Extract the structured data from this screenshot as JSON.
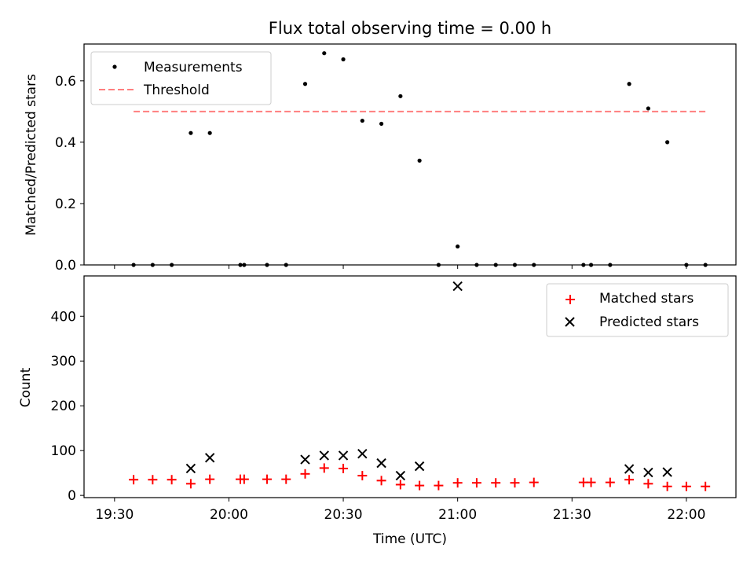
{
  "chart_data": {
    "title": "Flux total observing time = 0.00 h",
    "xlabel": "Time (UTC)",
    "x_ticks": [
      "19:30",
      "20:00",
      "20:30",
      "21:00",
      "21:30",
      "22:00"
    ],
    "x_tick_minutes": [
      1170,
      1200,
      1230,
      1260,
      1290,
      1320
    ],
    "xlim_minutes": [
      1162,
      1333
    ],
    "panels": [
      {
        "type": "scatter",
        "ylabel": "Matched/Predicted stars",
        "ylim": [
          0,
          0.72
        ],
        "y_ticks": [
          0.0,
          0.2,
          0.4,
          0.6
        ],
        "y_tick_labels": [
          "0.0",
          "0.2",
          "0.4",
          "0.6"
        ],
        "legend_position": "top-left",
        "threshold": {
          "name": "Threshold",
          "value": 0.5,
          "x_range": [
            "19:35",
            "22:05"
          ],
          "color": "#ff7f7f"
        },
        "series": [
          {
            "name": "Measurements",
            "color": "#000000",
            "marker": "dot",
            "points": [
              [
                "19:35",
                0.0
              ],
              [
                "19:40",
                0.0
              ],
              [
                "19:45",
                0.0
              ],
              [
                "19:50",
                0.43
              ],
              [
                "19:55",
                0.43
              ],
              [
                "20:03",
                0.0
              ],
              [
                "20:04",
                0.0
              ],
              [
                "20:10",
                0.0
              ],
              [
                "20:15",
                0.0
              ],
              [
                "20:20",
                0.59
              ],
              [
                "20:25",
                0.69
              ],
              [
                "20:30",
                0.67
              ],
              [
                "20:35",
                0.47
              ],
              [
                "20:40",
                0.46
              ],
              [
                "20:45",
                0.55
              ],
              [
                "20:50",
                0.34
              ],
              [
                "20:55",
                0.0
              ],
              [
                "21:00",
                0.06
              ],
              [
                "21:05",
                0.0
              ],
              [
                "21:10",
                0.0
              ],
              [
                "21:15",
                0.0
              ],
              [
                "21:20",
                0.0
              ],
              [
                "21:33",
                0.0
              ],
              [
                "21:35",
                0.0
              ],
              [
                "21:40",
                0.0
              ],
              [
                "21:45",
                0.59
              ],
              [
                "21:50",
                0.51
              ],
              [
                "21:55",
                0.4
              ],
              [
                "22:00",
                0.0
              ],
              [
                "22:05",
                0.0
              ]
            ]
          }
        ]
      },
      {
        "type": "scatter",
        "ylabel": "Count",
        "ylim": [
          -5,
          490
        ],
        "y_ticks": [
          0,
          100,
          200,
          300,
          400
        ],
        "y_tick_labels": [
          "0",
          "100",
          "200",
          "300",
          "400"
        ],
        "legend_position": "top-right",
        "series": [
          {
            "name": "Matched stars",
            "color": "#ff0000",
            "marker": "plus",
            "points": [
              [
                "19:35",
                35
              ],
              [
                "19:40",
                35
              ],
              [
                "19:45",
                35
              ],
              [
                "19:50",
                26
              ],
              [
                "19:55",
                36
              ],
              [
                "20:03",
                36
              ],
              [
                "20:04",
                36
              ],
              [
                "20:10",
                36
              ],
              [
                "20:15",
                36
              ],
              [
                "20:20",
                48
              ],
              [
                "20:25",
                61
              ],
              [
                "20:30",
                60
              ],
              [
                "20:35",
                44
              ],
              [
                "20:40",
                33
              ],
              [
                "20:45",
                24
              ],
              [
                "20:50",
                22
              ],
              [
                "20:55",
                22
              ],
              [
                "21:00",
                28
              ],
              [
                "21:05",
                28
              ],
              [
                "21:10",
                28
              ],
              [
                "21:15",
                28
              ],
              [
                "21:20",
                29
              ],
              [
                "21:33",
                29
              ],
              [
                "21:35",
                29
              ],
              [
                "21:40",
                29
              ],
              [
                "21:45",
                35
              ],
              [
                "21:50",
                26
              ],
              [
                "21:55",
                20
              ],
              [
                "22:00",
                20
              ],
              [
                "22:05",
                20
              ]
            ]
          },
          {
            "name": "Predicted stars",
            "color": "#000000",
            "marker": "x",
            "points": [
              [
                "19:50",
                60
              ],
              [
                "19:55",
                84
              ],
              [
                "20:20",
                80
              ],
              [
                "20:25",
                89
              ],
              [
                "20:30",
                89
              ],
              [
                "20:35",
                93
              ],
              [
                "20:40",
                72
              ],
              [
                "20:45",
                44
              ],
              [
                "20:50",
                65
              ],
              [
                "21:00",
                467
              ],
              [
                "21:45",
                59
              ],
              [
                "21:50",
                51
              ],
              [
                "21:55",
                52
              ]
            ]
          }
        ]
      }
    ]
  }
}
